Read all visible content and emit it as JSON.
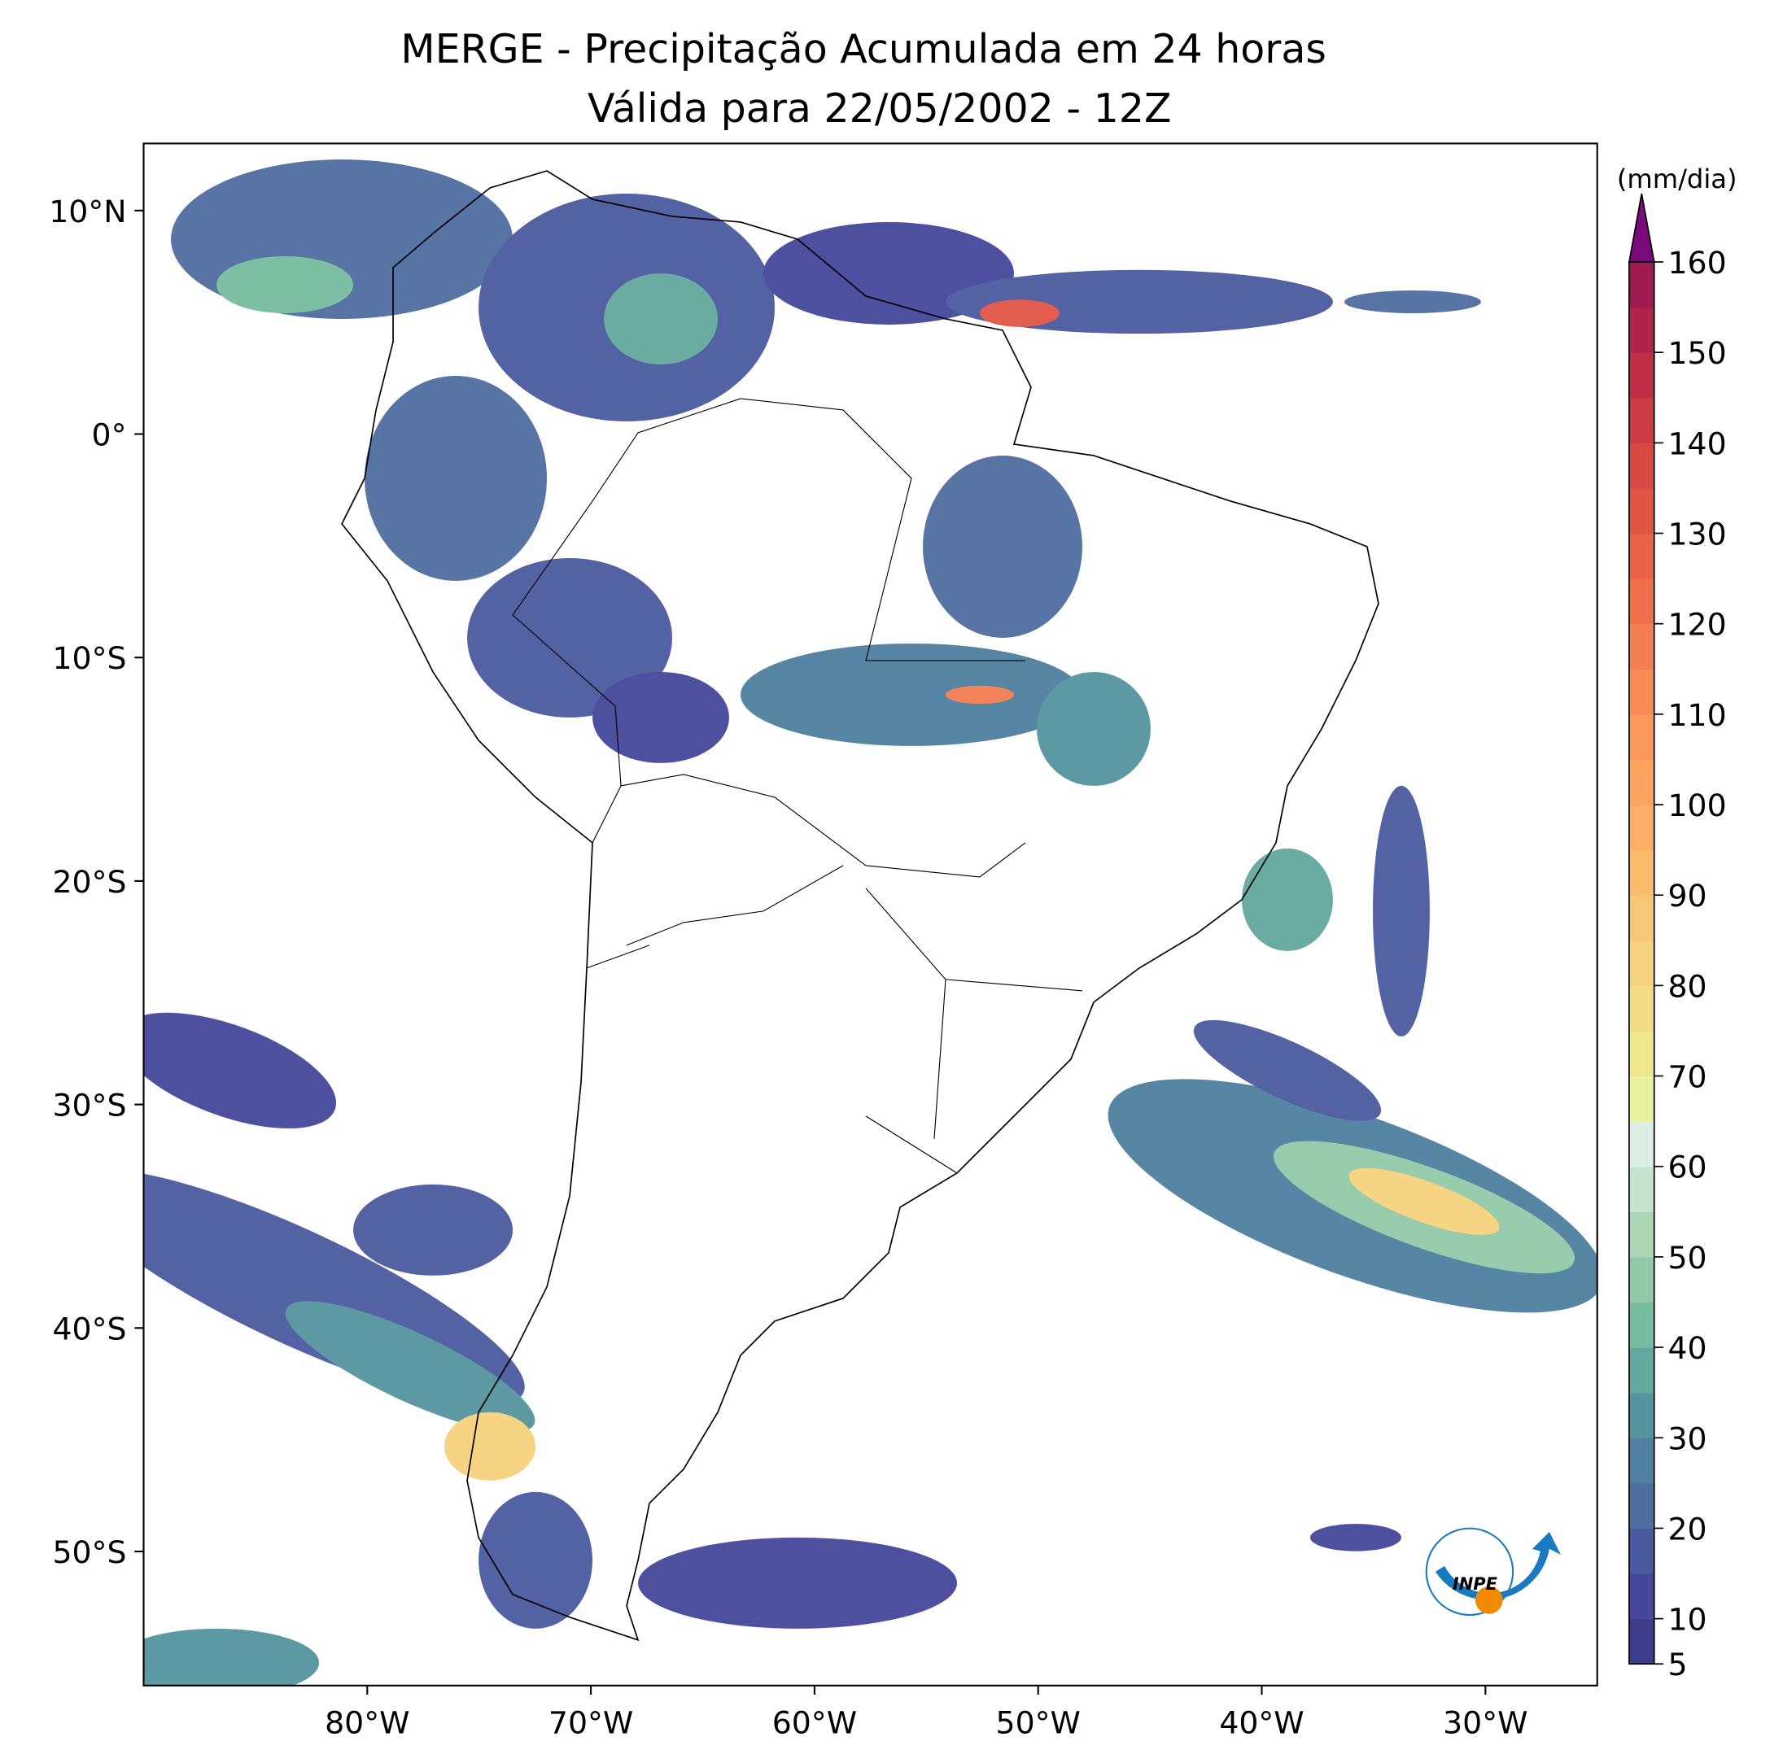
{
  "chart_data": {
    "type": "map",
    "title": "MERGE - Precipitação Acumulada em 24 horas",
    "subtitle": "Válida para 22/05/2002 - 12Z",
    "xlim": [
      -90,
      -25
    ],
    "ylim": [
      -56,
      13
    ],
    "xticks": [
      {
        "value": -80,
        "label": "80°W"
      },
      {
        "value": -70,
        "label": "70°W"
      },
      {
        "value": -60,
        "label": "60°W"
      },
      {
        "value": -50,
        "label": "50°W"
      },
      {
        "value": -40,
        "label": "40°W"
      },
      {
        "value": -30,
        "label": "30°W"
      }
    ],
    "yticks": [
      {
        "value": 10,
        "label": "10°N"
      },
      {
        "value": 0,
        "label": "0°"
      },
      {
        "value": -10,
        "label": "10°S"
      },
      {
        "value": -20,
        "label": "20°S"
      },
      {
        "value": -30,
        "label": "30°S"
      },
      {
        "value": -40,
        "label": "40°S"
      },
      {
        "value": -50,
        "label": "50°S"
      }
    ],
    "colorbar": {
      "label": "(mm/dia)",
      "lim": [
        5,
        160
      ],
      "ticks": [
        5,
        10,
        20,
        30,
        40,
        50,
        60,
        70,
        80,
        90,
        100,
        110,
        120,
        130,
        140,
        150,
        160
      ],
      "colors": [
        "#3d3c8c",
        "#44479a",
        "#4a5a9e",
        "#4e6da0",
        "#4f80a0",
        "#55949e",
        "#62a89c",
        "#76bc9f",
        "#92caa8",
        "#acd7b5",
        "#c6e4cd",
        "#dcefe6",
        "#e9f29c",
        "#efe78d",
        "#f3dc86",
        "#f6d27e",
        "#f8c775",
        "#fabb6c",
        "#fbae65",
        "#fca35f",
        "#f9985a",
        "#f78c56",
        "#f47d52",
        "#ef6f4c",
        "#e86348",
        "#e25545",
        "#d84843",
        "#cd3b43",
        "#c02f46",
        "#b12449",
        "#9e1a4f"
      ],
      "extend_color": "#7a0a7a"
    },
    "logo": "INPE"
  }
}
